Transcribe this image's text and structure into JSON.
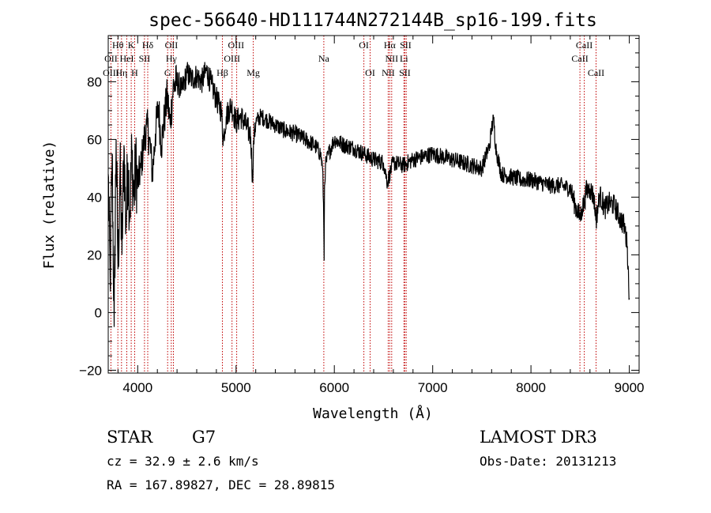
{
  "chart_data": {
    "type": "line",
    "title": "spec-56640-HD111744N272144B_sp16-199.fits",
    "xlabel": "Wavelength (Å)",
    "ylabel": "Flux (relative)",
    "xlim": [
      3700,
      9100
    ],
    "ylim": [
      -21,
      96
    ],
    "xticks": [
      4000,
      5000,
      6000,
      7000,
      8000,
      9000
    ],
    "xtick_labels": [
      "4000",
      "5000",
      "6000",
      "7000",
      "8000",
      "9000"
    ],
    "yticks": [
      -20,
      0,
      20,
      40,
      60,
      80
    ],
    "ytick_labels": [
      "−20",
      "0",
      "20",
      "40",
      "60",
      "80"
    ],
    "grid": false,
    "series": [
      {
        "x": [
          3700,
          3720,
          3740,
          3760,
          3780,
          3800,
          3820,
          3840,
          3860,
          3880,
          3900,
          3920,
          3940,
          3960,
          3980,
          4000,
          4030,
          4060,
          4090,
          4120,
          4150,
          4180,
          4210,
          4240,
          4270,
          4300,
          4330,
          4360,
          4400,
          4450,
          4500,
          4550,
          4600,
          4650,
          4700,
          4750,
          4800,
          4850,
          4870,
          4900,
          4950,
          5000,
          5050,
          5100,
          5150,
          5170,
          5180,
          5200,
          5250,
          5300,
          5400,
          5500,
          5600,
          5700,
          5800,
          5860,
          5880,
          5890,
          5896,
          5900,
          5910,
          5940,
          6000,
          6100,
          6200,
          6300,
          6400,
          6500,
          6540,
          6563,
          6580,
          6600,
          6700,
          6800,
          6900,
          7000,
          7100,
          7200,
          7300,
          7400,
          7500,
          7580,
          7600,
          7620,
          7640,
          7660,
          7700,
          7800,
          7900,
          8000,
          8100,
          8200,
          8300,
          8400,
          8450,
          8498,
          8520,
          8542,
          8560,
          8600,
          8640,
          8662,
          8700,
          8750,
          8800,
          8850,
          8900,
          8950,
          8980,
          9000
        ],
        "y": [
          48,
          10,
          55,
          -5,
          60,
          15,
          50,
          20,
          58,
          30,
          52,
          35,
          55,
          40,
          50,
          45,
          50,
          58,
          65,
          60,
          48,
          62,
          72,
          58,
          67,
          75,
          65,
          78,
          80,
          77,
          83,
          81,
          82,
          80,
          84,
          79,
          74,
          70,
          60,
          68,
          72,
          66,
          68,
          65,
          61,
          45,
          60,
          66,
          68,
          67,
          65,
          63,
          62,
          60,
          58,
          55,
          50,
          38,
          18,
          44,
          51,
          55,
          60,
          58,
          57,
          55,
          53,
          52,
          45,
          48,
          50,
          52,
          51,
          53,
          54,
          55,
          54,
          53,
          52,
          51,
          50,
          58,
          64,
          67,
          58,
          54,
          48,
          47,
          46,
          46,
          45,
          44,
          44,
          43,
          37,
          33,
          36,
          38,
          42,
          43,
          40,
          32,
          41,
          36,
          38,
          37,
          33,
          30,
          23,
          5
        ]
      }
    ],
    "annotations": [
      {
        "label": "Hθ",
        "x": 3798,
        "row": 1
      },
      {
        "label": "K",
        "x": 3934,
        "row": 1
      },
      {
        "label": "Hδ",
        "x": 4102,
        "row": 1
      },
      {
        "label": "OII",
        "x": 4342,
        "row": 1
      },
      {
        "label": "OIII",
        "x": 5000,
        "row": 1
      },
      {
        "label": "OI",
        "x": 6300,
        "row": 1
      },
      {
        "label": "Hα",
        "x": 6563,
        "row": 1
      },
      {
        "label": "SII",
        "x": 6725,
        "row": 1
      },
      {
        "label": "CaII",
        "x": 8542,
        "row": 1
      },
      {
        "label": "OII",
        "x": 3727,
        "row": 2
      },
      {
        "label": "HeI",
        "x": 3889,
        "row": 2
      },
      {
        "label": "SII",
        "x": 4069,
        "row": 2
      },
      {
        "label": "Hγ",
        "x": 4341,
        "row": 2
      },
      {
        "label": "OIII",
        "x": 4959,
        "row": 2
      },
      {
        "label": "Na",
        "x": 5893,
        "row": 2
      },
      {
        "label": "NII",
        "x": 6583,
        "row": 2
      },
      {
        "label": "Li",
        "x": 6708,
        "row": 2
      },
      {
        "label": "CaII",
        "x": 8498,
        "row": 2
      },
      {
        "label": "OIII",
        "x": 3727,
        "row": 3
      },
      {
        "label": "Hη",
        "x": 3835,
        "row": 3
      },
      {
        "label": "H",
        "x": 3969,
        "row": 3
      },
      {
        "label": "G",
        "x": 4304,
        "row": 3
      },
      {
        "label": "Hβ",
        "x": 4861,
        "row": 3
      },
      {
        "label": "Mg",
        "x": 5175,
        "row": 3
      },
      {
        "label": "OI",
        "x": 6364,
        "row": 3
      },
      {
        "label": "NII",
        "x": 6548,
        "row": 3
      },
      {
        "label": "SII",
        "x": 6717,
        "row": 3
      },
      {
        "label": "CaII",
        "x": 8662,
        "row": 3
      }
    ],
    "line_markers": [
      3727,
      3798,
      3835,
      3889,
      3934,
      3969,
      4069,
      4102,
      4304,
      4341,
      4363,
      4861,
      4959,
      5007,
      5175,
      5893,
      6300,
      6364,
      6548,
      6563,
      6583,
      6708,
      6717,
      6731,
      8498,
      8542,
      8662
    ],
    "line_marker_color": "#c00000"
  },
  "info": {
    "class": "STAR",
    "subclass": "G7",
    "cz": "cz = 32.9 ± 2.6 km/s",
    "radec": "RA = 167.89827, DEC =  28.89815",
    "survey": "LAMOST DR3",
    "obsdate": "Obs-Date: 20131213"
  }
}
